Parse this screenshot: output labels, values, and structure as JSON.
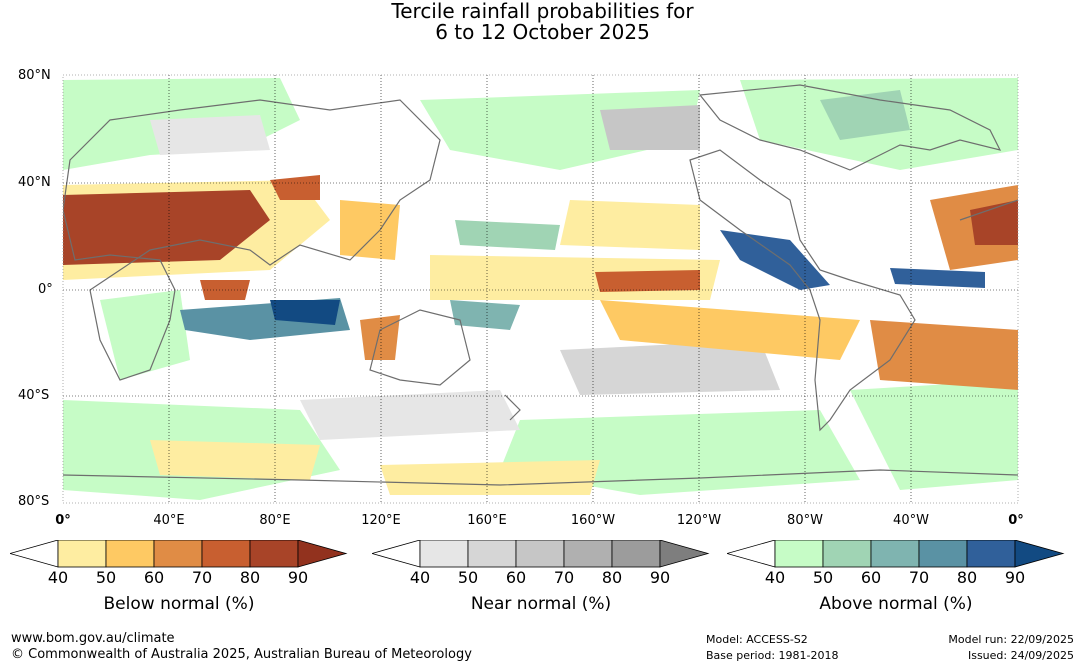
{
  "title": {
    "line1": "Tercile rainfall probabilities for",
    "line2": "6 to 12 October 2025"
  },
  "map": {
    "lat_labels": [
      "80°N",
      "40°N",
      "0°",
      "40°S",
      "80°S"
    ],
    "lon_labels": [
      "0°",
      "40°E",
      "80°E",
      "120°E",
      "160°E",
      "160°W",
      "120°W",
      "80°W",
      "40°W",
      "0°"
    ]
  },
  "colorbars": [
    {
      "caption": "Below normal (%)",
      "ticks": [
        "40",
        "50",
        "60",
        "70",
        "80",
        "90"
      ],
      "colors": [
        "#ffffff",
        "#feeda1",
        "#fec963",
        "#e08c45",
        "#c85f30",
        "#a84428",
        "#92321e"
      ]
    },
    {
      "caption": "Near normal (%)",
      "ticks": [
        "40",
        "50",
        "60",
        "70",
        "80",
        "90"
      ],
      "colors": [
        "#ffffff",
        "#e6e6e6",
        "#d6d6d6",
        "#c6c6c6",
        "#b0b0b0",
        "#9c9c9c",
        "#7e7e7e"
      ]
    },
    {
      "caption": "Above normal (%)",
      "ticks": [
        "40",
        "50",
        "60",
        "70",
        "80",
        "90"
      ],
      "colors": [
        "#ffffff",
        "#c6fcc6",
        "#a0d4b4",
        "#7fb4b0",
        "#5a92a4",
        "#30609a",
        "#124a82"
      ]
    }
  ],
  "footer": {
    "url": "www.bom.gov.au/climate",
    "copyright": "© Commonwealth of Australia 2025, Australian Bureau of Meteorology",
    "model": "Model: ACCESS-S2",
    "base_period": "Base period: 1981-2018",
    "model_run": "Model run: 22/09/2025",
    "issued": "Issued: 24/09/2025"
  }
}
